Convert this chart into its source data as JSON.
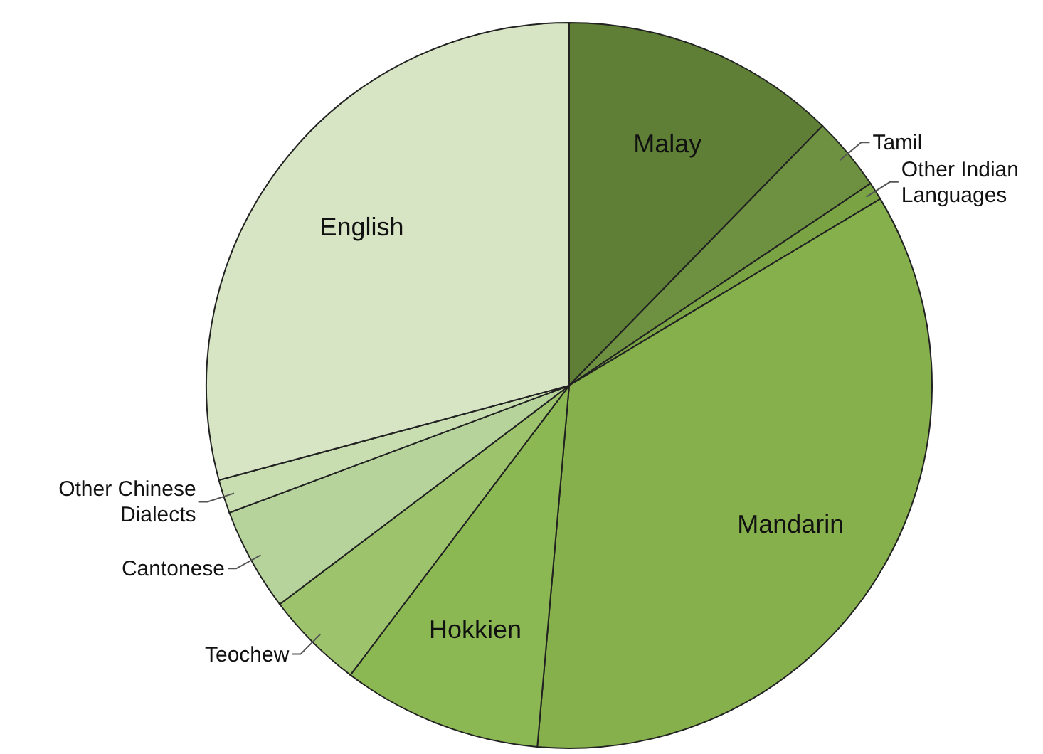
{
  "chart_data": {
    "type": "pie",
    "categories": [
      "Malay",
      "Tamil",
      "Other Indian Languages",
      "Mandarin",
      "Hokkien",
      "Teochew",
      "Cantonese",
      "Other Chinese Dialects",
      "English"
    ],
    "values": [
      12.3,
      3.3,
      0.8,
      35,
      8.9,
      4.4,
      4.6,
      1.5,
      29.2
    ],
    "colors": [
      "#5e7f35",
      "#6d9140",
      "#7aa444",
      "#86b04b",
      "#8cb854",
      "#9dc46c",
      "#b5d39a",
      "#c8deb1",
      "#d7e5c5"
    ],
    "legend": false
  }
}
